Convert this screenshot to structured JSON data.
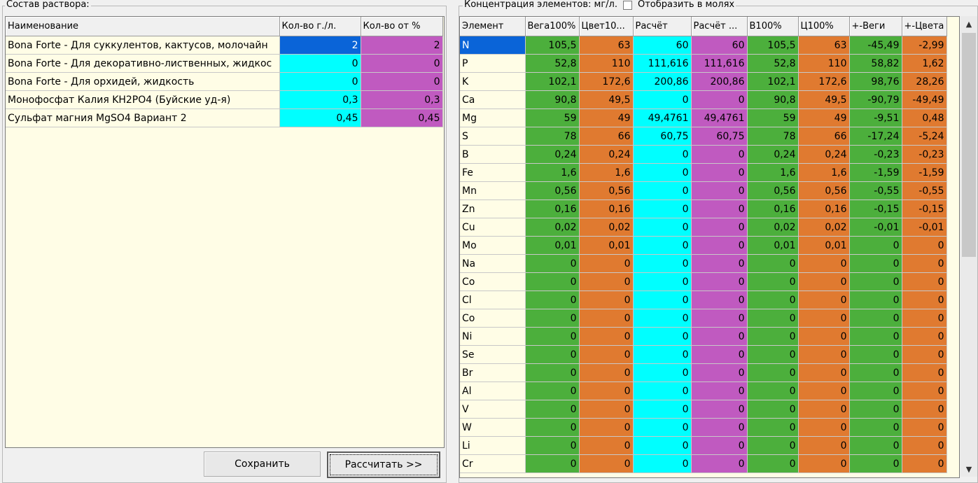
{
  "left": {
    "group_title": "Состав раствора:",
    "columns": [
      "Наименование",
      "Кол-во г./л.",
      "Кол-во от %"
    ],
    "rows": [
      {
        "name": "Bona Forte - Для суккулентов, кактусов, молочайн",
        "qty": "2",
        "pct": "2",
        "selected": true
      },
      {
        "name": "Bona Forte - Для декоративно-лиственных, жидкос",
        "qty": "0",
        "pct": "0"
      },
      {
        "name": "Bona Forte - Для орхидей, жидкость",
        "qty": "0",
        "pct": "0"
      },
      {
        "name": "Монофосфат Калия KH2PO4 (Буйские уд-я)",
        "qty": "0,3",
        "pct": "0,3"
      },
      {
        "name": "Сульфат магния MgSO4 Вариант 2",
        "qty": "0,45",
        "pct": "0,45"
      }
    ],
    "buttons": {
      "save": "Сохранить",
      "calculate": "Рассчитать >>"
    }
  },
  "right": {
    "group_title": "Концентрация элементов: мг/л.",
    "checkbox_label": "Отобразить в молях",
    "columns": [
      "Элемент",
      "Вега100%",
      "Цвет10...",
      "Расчёт",
      "Расчёт ...",
      "В100%",
      "Ц100%",
      "+-Веги",
      "+-Цвета"
    ],
    "rows": [
      [
        "N",
        "105,5",
        "63",
        "60",
        "60",
        "105,5",
        "63",
        "-45,49",
        "-2,99"
      ],
      [
        "P",
        "52,8",
        "110",
        "111,616",
        "111,616",
        "52,8",
        "110",
        "58,82",
        "1,62"
      ],
      [
        "K",
        "102,1",
        "172,6",
        "200,86",
        "200,86",
        "102,1",
        "172,6",
        "98,76",
        "28,26"
      ],
      [
        "Ca",
        "90,8",
        "49,5",
        "0",
        "0",
        "90,8",
        "49,5",
        "-90,79",
        "-49,49"
      ],
      [
        "Mg",
        "59",
        "49",
        "49,4761",
        "49,4761",
        "59",
        "49",
        "-9,51",
        "0,48"
      ],
      [
        "S",
        "78",
        "66",
        "60,75",
        "60,75",
        "78",
        "66",
        "-17,24",
        "-5,24"
      ],
      [
        "B",
        "0,24",
        "0,24",
        "0",
        "0",
        "0,24",
        "0,24",
        "-0,23",
        "-0,23"
      ],
      [
        "Fe",
        "1,6",
        "1,6",
        "0",
        "0",
        "1,6",
        "1,6",
        "-1,59",
        "-1,59"
      ],
      [
        "Mn",
        "0,56",
        "0,56",
        "0",
        "0",
        "0,56",
        "0,56",
        "-0,55",
        "-0,55"
      ],
      [
        "Zn",
        "0,16",
        "0,16",
        "0",
        "0",
        "0,16",
        "0,16",
        "-0,15",
        "-0,15"
      ],
      [
        "Cu",
        "0,02",
        "0,02",
        "0",
        "0",
        "0,02",
        "0,02",
        "-0,01",
        "-0,01"
      ],
      [
        "Mo",
        "0,01",
        "0,01",
        "0",
        "0",
        "0,01",
        "0,01",
        "0",
        "0"
      ],
      [
        "Na",
        "0",
        "0",
        "0",
        "0",
        "0",
        "0",
        "0",
        "0"
      ],
      [
        "Co",
        "0",
        "0",
        "0",
        "0",
        "0",
        "0",
        "0",
        "0"
      ],
      [
        "Cl",
        "0",
        "0",
        "0",
        "0",
        "0",
        "0",
        "0",
        "0"
      ],
      [
        "Co",
        "0",
        "0",
        "0",
        "0",
        "0",
        "0",
        "0",
        "0"
      ],
      [
        "Ni",
        "0",
        "0",
        "0",
        "0",
        "0",
        "0",
        "0",
        "0"
      ],
      [
        "Se",
        "0",
        "0",
        "0",
        "0",
        "0",
        "0",
        "0",
        "0"
      ],
      [
        "Br",
        "0",
        "0",
        "0",
        "0",
        "0",
        "0",
        "0",
        "0"
      ],
      [
        "Al",
        "0",
        "0",
        "0",
        "0",
        "0",
        "0",
        "0",
        "0"
      ],
      [
        "V",
        "0",
        "0",
        "0",
        "0",
        "0",
        "0",
        "0",
        "0"
      ],
      [
        "W",
        "0",
        "0",
        "0",
        "0",
        "0",
        "0",
        "0",
        "0"
      ],
      [
        "Li",
        "0",
        "0",
        "0",
        "0",
        "0",
        "0",
        "0",
        "0"
      ],
      [
        "Cr",
        "0",
        "0",
        "0",
        "0",
        "0",
        "0",
        "0",
        "0"
      ]
    ],
    "column_colors": [
      "#fffde6",
      "#4caf3c",
      "#e07a30",
      "#00ffff",
      "#c05ac0",
      "#4caf3c",
      "#e07a30",
      "#4caf3c",
      "#e07a30"
    ],
    "selected_cell": {
      "row": 0,
      "col": 0
    }
  },
  "icons": {
    "scroll_up": "chevron-up-icon",
    "scroll_down": "chevron-down-icon"
  }
}
